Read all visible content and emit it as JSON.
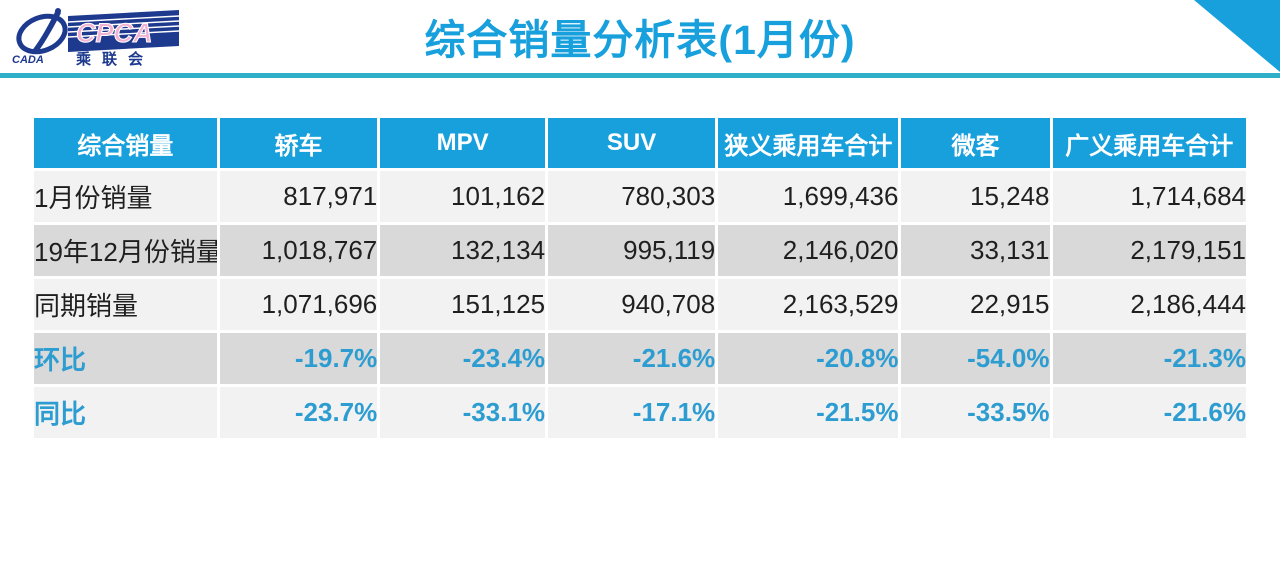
{
  "page": {
    "title": "综合销量分析表(1月份)",
    "logo": {
      "org_en": "CPCA",
      "org_cn": "乘联会",
      "org_sub": "CADA"
    },
    "colors": {
      "accent_blue": "#18A0DC",
      "divider_cyan": "#2FB0C8",
      "logo_navy": "#1E3A8F",
      "logo_pink": "#F2B2D4",
      "row_light": "#F2F2F2",
      "row_dark": "#D9D9D9",
      "percent_blue": "#2D9DD1"
    }
  },
  "chart_data": {
    "type": "table",
    "title": "综合销量分析表(1月份)",
    "columns": [
      "综合销量",
      "轿车",
      "MPV",
      "SUV",
      "狭义乘用车合计",
      "微客",
      "广义乘用车合计"
    ],
    "rows": [
      {
        "label": "1月份销量",
        "type": "number",
        "values": [
          "817,971",
          "101,162",
          "780,303",
          "1,699,436",
          "15,248",
          "1,714,684"
        ]
      },
      {
        "label": "19年12月份销量",
        "type": "number",
        "values": [
          "1,018,767",
          "132,134",
          "995,119",
          "2,146,020",
          "33,131",
          "2,179,151"
        ]
      },
      {
        "label": "同期销量",
        "type": "number",
        "values": [
          "1,071,696",
          "151,125",
          "940,708",
          "2,163,529",
          "22,915",
          "2,186,444"
        ]
      },
      {
        "label": "环比",
        "type": "percent",
        "values": [
          "-19.7%",
          "-23.4%",
          "-21.6%",
          "-20.8%",
          "-54.0%",
          "-21.3%"
        ]
      },
      {
        "label": "同比",
        "type": "percent",
        "values": [
          "-23.7%",
          "-33.1%",
          "-17.1%",
          "-21.5%",
          "-33.5%",
          "-21.6%"
        ]
      }
    ]
  }
}
